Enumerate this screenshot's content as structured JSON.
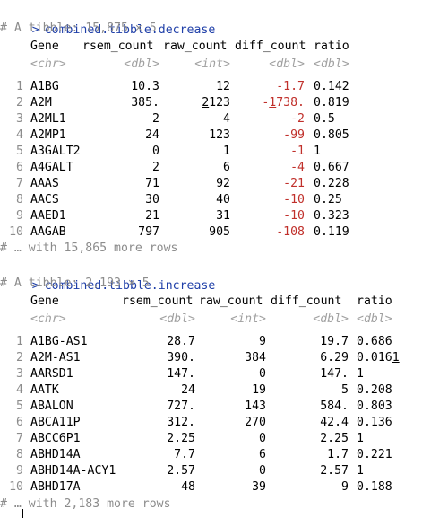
{
  "console": {
    "prompt": ">",
    "blocks": [
      {
        "command": "combined.tibble.decrease",
        "header": "# A tibble: 15,875 × 5",
        "columns": [
          "Gene",
          "rsem_count",
          "raw_count",
          "diff_count",
          "ratio"
        ],
        "types": [
          "<chr>",
          "<dbl>",
          "<int>",
          "<dbl>",
          "<dbl>"
        ],
        "rows": [
          {
            "n": "1",
            "gene": "A1BG",
            "rsem": "10.3",
            "raw": "12",
            "diff": "-1.7",
            "ratio": "0.142"
          },
          {
            "n": "2",
            "gene": "A2M",
            "rsem": "385.",
            "raw": "2123",
            "diff": "-1738.",
            "ratio": "0.819"
          },
          {
            "n": "3",
            "gene": "A2ML1",
            "rsem": "2",
            "raw": "4",
            "diff": "-2",
            "ratio": "0.5"
          },
          {
            "n": "4",
            "gene": "A2MP1",
            "rsem": "24",
            "raw": "123",
            "diff": "-99",
            "ratio": "0.805"
          },
          {
            "n": "5",
            "gene": "A3GALT2",
            "rsem": "0",
            "raw": "1",
            "diff": "-1",
            "ratio": "1"
          },
          {
            "n": "6",
            "gene": "A4GALT",
            "rsem": "2",
            "raw": "6",
            "diff": "-4",
            "ratio": "0.667"
          },
          {
            "n": "7",
            "gene": "AAAS",
            "rsem": "71",
            "raw": "92",
            "diff": "-21",
            "ratio": "0.228"
          },
          {
            "n": "8",
            "gene": "AACS",
            "rsem": "30",
            "raw": "40",
            "diff": "-10",
            "ratio": "0.25"
          },
          {
            "n": "9",
            "gene": "AAED1",
            "rsem": "21",
            "raw": "31",
            "diff": "-10",
            "ratio": "0.323"
          },
          {
            "n": "10",
            "gene": "AAGAB",
            "rsem": "797",
            "raw": "905",
            "diff": "-108",
            "ratio": "0.119"
          }
        ],
        "footer": "# … with 15,865 more rows"
      },
      {
        "command": "combined.tibble.increase",
        "header": "# A tibble: 2,193 × 5",
        "columns": [
          "Gene",
          "rsem_count",
          "raw_count",
          "diff_count",
          "ratio"
        ],
        "types": [
          "<chr>",
          "<dbl>",
          "<int>",
          "<dbl>",
          "<dbl>"
        ],
        "rows": [
          {
            "n": "1",
            "gene": "A1BG-AS1",
            "rsem": "28.7",
            "raw": "9",
            "diff": "19.7",
            "ratio": "0.686"
          },
          {
            "n": "2",
            "gene": "A2M-AS1",
            "rsem": "390.",
            "raw": "384",
            "diff": "6.29",
            "ratio": "0.0161"
          },
          {
            "n": "3",
            "gene": "AARSD1",
            "rsem": "147.",
            "raw": "0",
            "diff": "147.",
            "ratio": "1"
          },
          {
            "n": "4",
            "gene": "AATK",
            "rsem": "24",
            "raw": "19",
            "diff": "5",
            "ratio": "0.208"
          },
          {
            "n": "5",
            "gene": "ABALON",
            "rsem": "727.",
            "raw": "143",
            "diff": "584.",
            "ratio": "0.803"
          },
          {
            "n": "6",
            "gene": "ABCA11P",
            "rsem": "312.",
            "raw": "270",
            "diff": "42.4",
            "ratio": "0.136"
          },
          {
            "n": "7",
            "gene": "ABCC6P1",
            "rsem": "2.25",
            "raw": "0",
            "diff": "2.25",
            "ratio": "1"
          },
          {
            "n": "8",
            "gene": "ABHD14A",
            "rsem": "7.7",
            "raw": "6",
            "diff": "1.7",
            "ratio": "0.221"
          },
          {
            "n": "9",
            "gene": "ABHD14A-ACY1",
            "rsem": "2.57",
            "raw": "0",
            "diff": "2.57",
            "ratio": "1"
          },
          {
            "n": "10",
            "gene": "ABHD17A",
            "rsem": "48",
            "raw": "39",
            "diff": "9",
            "ratio": "0.188"
          }
        ],
        "footer": "# … with 2,183 more rows"
      }
    ],
    "colors": {
      "command": "#1f3fa8",
      "comment": "#8c8c8c",
      "type": "#a0a0a0",
      "negative": "#c0302b"
    }
  }
}
